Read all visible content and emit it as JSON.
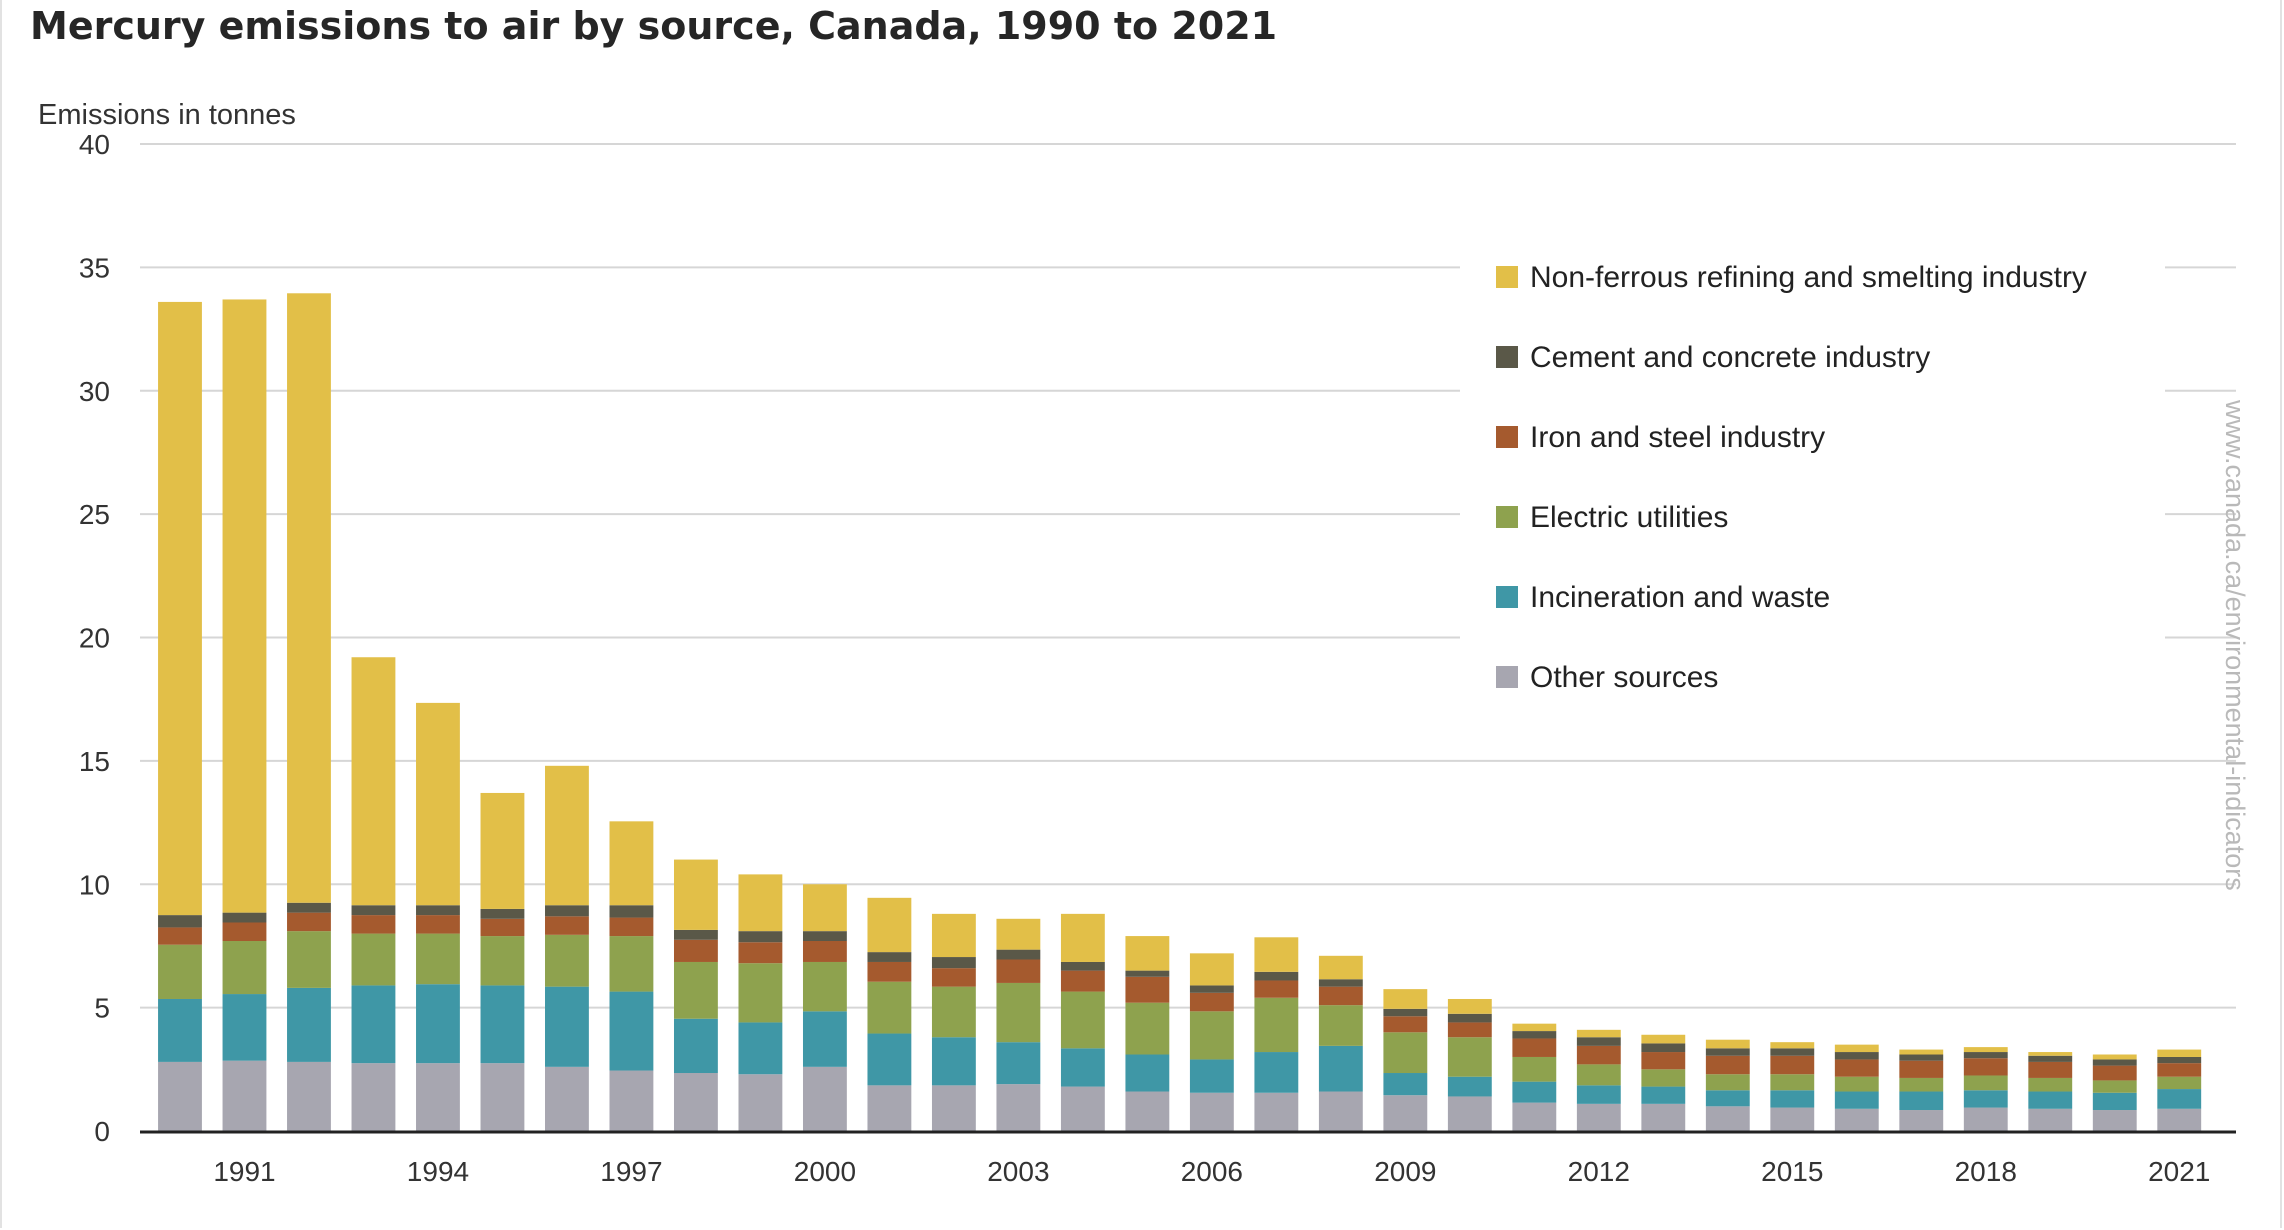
{
  "title": "Mercury emissions to air by source, Canada, 1990 to 2021",
  "watermark": "www.canada.ca/environmental-indicators",
  "colors": {
    "Non-ferrous refining and smelting industry": "#e2bf48",
    "Cement and concrete industry": "#5a5848",
    "Iron and steel industry": "#a55a2e",
    "Electric utilities": "#8ea24e",
    "Incineration and waste": "#3f97a6",
    "Other sources": "#a7a6b0",
    "grid": "#d6d6d6",
    "axis": "#222222"
  },
  "chart_data": {
    "type": "bar",
    "stacked": true,
    "ylabel": "Emissions in tonnes",
    "ylim": [
      0,
      40
    ],
    "yticks": [
      0,
      5,
      10,
      15,
      20,
      25,
      30,
      35,
      40
    ],
    "xtick_labels": [
      "1991",
      "1994",
      "1997",
      "2000",
      "2003",
      "2006",
      "2009",
      "2012",
      "2015",
      "2018",
      "2021"
    ],
    "grid": true,
    "legend_position": "top-right",
    "categories": [
      "1990",
      "1991",
      "1992",
      "1993",
      "1994",
      "1995",
      "1996",
      "1997",
      "1998",
      "1999",
      "2000",
      "2001",
      "2002",
      "2003",
      "2004",
      "2005",
      "2006",
      "2007",
      "2008",
      "2009",
      "2010",
      "2011",
      "2012",
      "2013",
      "2014",
      "2015",
      "2016",
      "2017",
      "2018",
      "2019",
      "2020",
      "2021"
    ],
    "series": [
      {
        "name": "Other sources",
        "values": [
          2.8,
          2.85,
          2.8,
          2.75,
          2.75,
          2.75,
          2.6,
          2.45,
          2.35,
          2.3,
          2.6,
          1.85,
          1.85,
          1.9,
          1.8,
          1.6,
          1.55,
          1.55,
          1.6,
          1.45,
          1.4,
          1.15,
          1.1,
          1.1,
          1.0,
          0.95,
          0.9,
          0.85,
          0.95,
          0.9,
          0.85,
          0.9
        ]
      },
      {
        "name": "Incineration and waste",
        "values": [
          2.55,
          2.7,
          3.0,
          3.15,
          3.2,
          3.15,
          3.25,
          3.2,
          2.2,
          2.1,
          2.25,
          2.1,
          1.95,
          1.7,
          1.55,
          1.5,
          1.35,
          1.65,
          1.85,
          0.9,
          0.8,
          0.85,
          0.75,
          0.7,
          0.65,
          0.7,
          0.7,
          0.75,
          0.7,
          0.7,
          0.7,
          0.8
        ]
      },
      {
        "name": "Electric utilities",
        "values": [
          2.2,
          2.15,
          2.3,
          2.1,
          2.05,
          2.0,
          2.1,
          2.25,
          2.3,
          2.4,
          2.0,
          2.1,
          2.05,
          2.4,
          2.3,
          2.1,
          1.95,
          2.2,
          1.65,
          1.65,
          1.6,
          1.0,
          0.85,
          0.7,
          0.65,
          0.65,
          0.6,
          0.55,
          0.6,
          0.55,
          0.5,
          0.5
        ]
      },
      {
        "name": "Iron and steel industry",
        "values": [
          0.7,
          0.75,
          0.75,
          0.75,
          0.75,
          0.7,
          0.75,
          0.75,
          0.9,
          0.85,
          0.85,
          0.8,
          0.75,
          0.95,
          0.85,
          1.05,
          0.75,
          0.7,
          0.75,
          0.65,
          0.6,
          0.75,
          0.75,
          0.7,
          0.75,
          0.75,
          0.7,
          0.7,
          0.7,
          0.65,
          0.6,
          0.55
        ]
      },
      {
        "name": "Cement and concrete industry",
        "values": [
          0.5,
          0.4,
          0.4,
          0.4,
          0.4,
          0.4,
          0.45,
          0.5,
          0.4,
          0.45,
          0.4,
          0.4,
          0.45,
          0.4,
          0.35,
          0.25,
          0.3,
          0.35,
          0.3,
          0.3,
          0.35,
          0.3,
          0.35,
          0.35,
          0.3,
          0.3,
          0.3,
          0.25,
          0.25,
          0.25,
          0.25,
          0.25
        ]
      },
      {
        "name": "Non-ferrous refining and smelting industry",
        "values": [
          24.85,
          24.85,
          24.7,
          10.05,
          8.2,
          4.7,
          5.65,
          3.4,
          2.85,
          2.3,
          1.9,
          2.2,
          1.75,
          1.25,
          1.95,
          1.4,
          1.3,
          1.4,
          0.95,
          0.8,
          0.6,
          0.3,
          0.3,
          0.35,
          0.35,
          0.25,
          0.3,
          0.2,
          0.2,
          0.15,
          0.2,
          0.3
        ]
      }
    ]
  },
  "legend": {
    "items": [
      {
        "label": "Non-ferrous refining and smelting industry",
        "series": "Non-ferrous refining and smelting industry"
      },
      {
        "label": "Cement and concrete industry",
        "series": "Cement and concrete industry"
      },
      {
        "label": "Iron and steel industry",
        "series": "Iron and steel industry"
      },
      {
        "label": "Electric utilities",
        "series": "Electric utilities"
      },
      {
        "label": "Incineration and waste",
        "series": "Incineration and waste"
      },
      {
        "label": "Other sources",
        "series": "Other sources"
      }
    ]
  }
}
